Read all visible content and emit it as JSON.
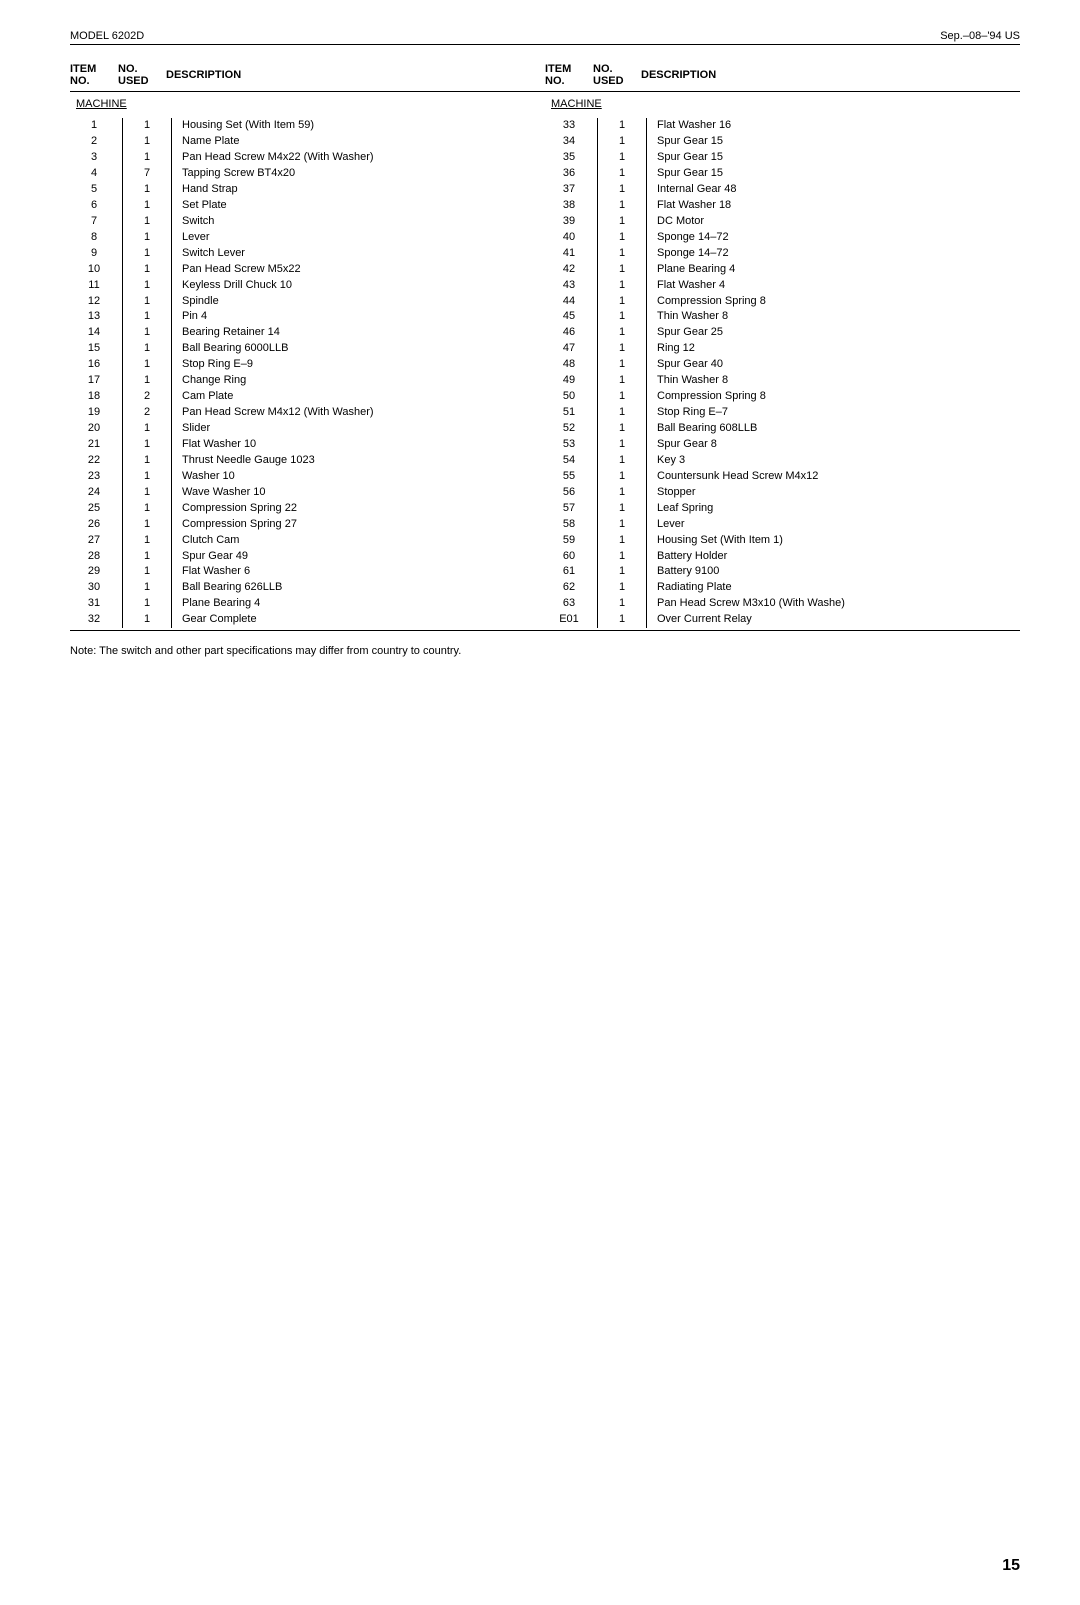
{
  "header": {
    "model": "MODEL 6202D",
    "date": "Sep.–08–'94  US"
  },
  "table": {
    "headers": {
      "item_label_line1": "ITEM",
      "item_label_line2": "NO.",
      "used_label_line1": "NO.",
      "used_label_line2": "USED",
      "desc_label": "DESCRIPTION"
    },
    "section_title": "MACHINE",
    "left": [
      {
        "no": "1",
        "used": "1",
        "desc": "Housing Set (With Item 59)"
      },
      {
        "no": "2",
        "used": "1",
        "desc": "Name Plate"
      },
      {
        "no": "3",
        "used": "1",
        "desc": "Pan Head Screw M4x22 (With Washer)"
      },
      {
        "no": "4",
        "used": "7",
        "desc": "Tapping Screw BT4x20"
      },
      {
        "no": "5",
        "used": "1",
        "desc": "Hand Strap"
      },
      {
        "no": "6",
        "used": "1",
        "desc": "Set Plate"
      },
      {
        "no": "7",
        "used": "1",
        "desc": "Switch"
      },
      {
        "no": "8",
        "used": "1",
        "desc": "Lever"
      },
      {
        "no": "9",
        "used": "1",
        "desc": "Switch Lever"
      },
      {
        "no": "10",
        "used": "1",
        "desc": "Pan Head Screw M5x22"
      },
      {
        "no": "11",
        "used": "1",
        "desc": "Keyless Drill Chuck 10"
      },
      {
        "no": "12",
        "used": "1",
        "desc": "Spindle"
      },
      {
        "no": "13",
        "used": "1",
        "desc": "Pin 4"
      },
      {
        "no": "14",
        "used": "1",
        "desc": "Bearing Retainer 14"
      },
      {
        "no": "15",
        "used": "1",
        "desc": "Ball Bearing 6000LLB"
      },
      {
        "no": "16",
        "used": "1",
        "desc": "Stop Ring E–9"
      },
      {
        "no": "17",
        "used": "1",
        "desc": "Change Ring"
      },
      {
        "no": "18",
        "used": "2",
        "desc": "Cam Plate"
      },
      {
        "no": "19",
        "used": "2",
        "desc": "Pan Head Screw M4x12 (With Washer)"
      },
      {
        "no": "20",
        "used": "1",
        "desc": "Slider"
      },
      {
        "no": "21",
        "used": "1",
        "desc": "Flat Washer 10"
      },
      {
        "no": "22",
        "used": "1",
        "desc": "Thrust Needle Gauge 1023"
      },
      {
        "no": "23",
        "used": "1",
        "desc": "Washer 10"
      },
      {
        "no": "24",
        "used": "1",
        "desc": "Wave Washer 10"
      },
      {
        "no": "25",
        "used": "1",
        "desc": "Compression Spring 22"
      },
      {
        "no": "26",
        "used": "1",
        "desc": "Compression Spring 27"
      },
      {
        "no": "27",
        "used": "1",
        "desc": "Clutch Cam"
      },
      {
        "no": "28",
        "used": "1",
        "desc": "Spur Gear 49"
      },
      {
        "no": "29",
        "used": "1",
        "desc": "Flat Washer 6"
      },
      {
        "no": "30",
        "used": "1",
        "desc": "Ball Bearing 626LLB"
      },
      {
        "no": "31",
        "used": "1",
        "desc": "Plane Bearing 4"
      },
      {
        "no": "32",
        "used": "1",
        "desc": "Gear Complete"
      }
    ],
    "right": [
      {
        "no": "33",
        "used": "1",
        "desc": "Flat Washer 16"
      },
      {
        "no": "34",
        "used": "1",
        "desc": "Spur Gear 15"
      },
      {
        "no": "35",
        "used": "1",
        "desc": "Spur Gear 15"
      },
      {
        "no": "36",
        "used": "1",
        "desc": "Spur Gear 15"
      },
      {
        "no": "37",
        "used": "1",
        "desc": "Internal Gear 48"
      },
      {
        "no": "38",
        "used": "1",
        "desc": "Flat Washer 18"
      },
      {
        "no": "39",
        "used": "1",
        "desc": "DC Motor"
      },
      {
        "no": "40",
        "used": "1",
        "desc": "Sponge 14–72"
      },
      {
        "no": "41",
        "used": "1",
        "desc": "Sponge 14–72"
      },
      {
        "no": "42",
        "used": "1",
        "desc": "Plane Bearing 4"
      },
      {
        "no": "43",
        "used": "1",
        "desc": "Flat Washer 4"
      },
      {
        "no": "44",
        "used": "1",
        "desc": "Compression Spring 8"
      },
      {
        "no": "45",
        "used": "1",
        "desc": "Thin Washer 8"
      },
      {
        "no": "46",
        "used": "1",
        "desc": "Spur Gear 25"
      },
      {
        "no": "47",
        "used": "1",
        "desc": "Ring 12"
      },
      {
        "no": "48",
        "used": "1",
        "desc": "Spur Gear 40"
      },
      {
        "no": "49",
        "used": "1",
        "desc": "Thin Washer 8"
      },
      {
        "no": "50",
        "used": "1",
        "desc": "Compression Spring 8"
      },
      {
        "no": "51",
        "used": "1",
        "desc": "Stop Ring E–7"
      },
      {
        "no": "52",
        "used": "1",
        "desc": "Ball Bearing 608LLB"
      },
      {
        "no": "53",
        "used": "1",
        "desc": "Spur Gear 8"
      },
      {
        "no": "54",
        "used": "1",
        "desc": "Key 3"
      },
      {
        "no": "55",
        "used": "1",
        "desc": "Countersunk Head Screw M4x12"
      },
      {
        "no": "56",
        "used": "1",
        "desc": "Stopper"
      },
      {
        "no": "57",
        "used": "1",
        "desc": "Leaf Spring"
      },
      {
        "no": "58",
        "used": "1",
        "desc": "Lever"
      },
      {
        "no": "59",
        "used": "1",
        "desc": "Housing Set (With Item 1)"
      },
      {
        "no": "60",
        "used": "1",
        "desc": "Battery Holder"
      },
      {
        "no": "61",
        "used": "1",
        "desc": "Battery 9100"
      },
      {
        "no": "62",
        "used": "1",
        "desc": "Radiating Plate"
      },
      {
        "no": "63",
        "used": "1",
        "desc": "Pan Head Screw M3x10 (With Washe)"
      },
      {
        "no": "E01",
        "used": "1",
        "desc": "Over Current Relay"
      }
    ]
  },
  "note": "Note: The switch and other part specifications may differ from country to country.",
  "page_number": "15"
}
